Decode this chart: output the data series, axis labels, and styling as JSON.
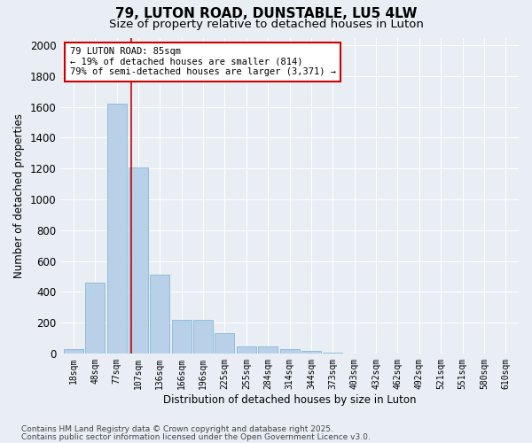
{
  "title": "79, LUTON ROAD, DUNSTABLE, LU5 4LW",
  "subtitle": "Size of property relative to detached houses in Luton",
  "xlabel": "Distribution of detached houses by size in Luton",
  "ylabel": "Number of detached properties",
  "categories": [
    "18sqm",
    "48sqm",
    "77sqm",
    "107sqm",
    "136sqm",
    "166sqm",
    "196sqm",
    "225sqm",
    "255sqm",
    "284sqm",
    "314sqm",
    "344sqm",
    "373sqm",
    "403sqm",
    "432sqm",
    "462sqm",
    "492sqm",
    "521sqm",
    "551sqm",
    "580sqm",
    "610sqm"
  ],
  "values": [
    30,
    460,
    1620,
    1210,
    510,
    215,
    215,
    130,
    45,
    45,
    30,
    15,
    5,
    0,
    0,
    0,
    0,
    0,
    0,
    0,
    0
  ],
  "bar_color": "#b8d0e8",
  "bar_edge_color": "#7aafd4",
  "red_line_x": 2.67,
  "annotation_text": "79 LUTON ROAD: 85sqm\n← 19% of detached houses are smaller (814)\n79% of semi-detached houses are larger (3,371) →",
  "annotation_box_color": "#ffffff",
  "annotation_box_edge": "#cc0000",
  "ylim": [
    0,
    2050
  ],
  "yticks": [
    0,
    200,
    400,
    600,
    800,
    1000,
    1200,
    1400,
    1600,
    1800,
    2000
  ],
  "background_color": "#e8eef4",
  "grid_color": "#ffffff",
  "footer_line1": "Contains HM Land Registry data © Crown copyright and database right 2025.",
  "footer_line2": "Contains public sector information licensed under the Open Government Licence v3.0.",
  "title_fontsize": 11,
  "subtitle_fontsize": 9.5,
  "ylabel_fontsize": 8.5,
  "xlabel_fontsize": 8.5,
  "tick_fontsize": 7,
  "footer_fontsize": 6.5,
  "annotation_fontsize": 7.5
}
